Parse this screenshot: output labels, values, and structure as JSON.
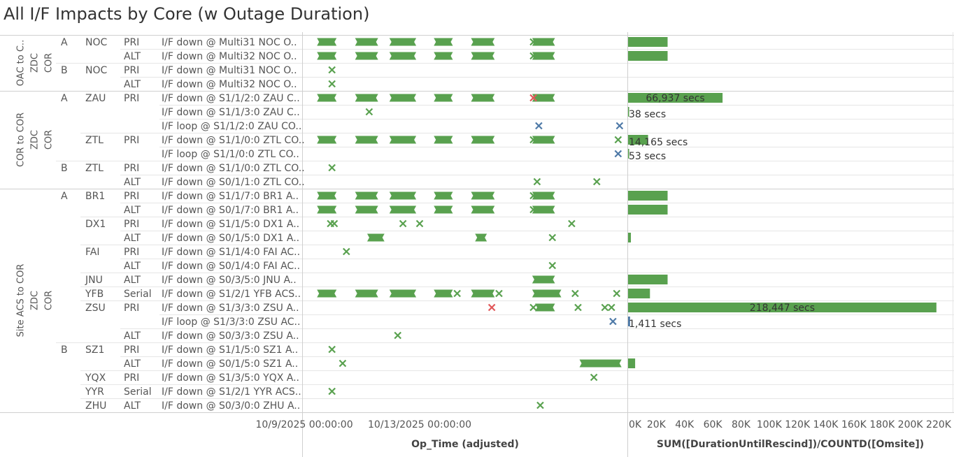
{
  "title": "All I/F Impacts by Core (w Outage Duration)",
  "colors": {
    "green": "#59a14f",
    "red": "#e15759",
    "blue": "#4e79a7",
    "grid": "#e6e6e6",
    "text": "#555555"
  },
  "groups": [
    {
      "label": [
        "OAC to C..",
        "ZDC",
        "COR"
      ],
      "start": 0,
      "end": 4
    },
    {
      "label": [
        "COR to COR",
        "ZDC",
        "COR"
      ],
      "start": 4,
      "end": 11
    },
    {
      "label": [
        "Site ACS to COR",
        "ZDC",
        "COR"
      ],
      "start": 11,
      "end": 27
    }
  ],
  "rows": [
    {
      "side": "A",
      "site": "NOC",
      "role": "PRI",
      "iface": "I/F down @ Multi31 NOC O.."
    },
    {
      "side": "",
      "site": "",
      "role": "ALT",
      "iface": "I/F down @ Multi32 NOC O.."
    },
    {
      "side": "B",
      "site": "NOC",
      "role": "PRI",
      "iface": "I/F down @ Multi31 NOC O.."
    },
    {
      "side": "",
      "site": "",
      "role": "ALT",
      "iface": "I/F down @ Multi32 NOC O.."
    },
    {
      "side": "A",
      "site": "ZAU",
      "role": "PRI",
      "iface": "I/F down @ S1/1/2:0 ZAU C.."
    },
    {
      "side": "",
      "site": "",
      "role": "",
      "iface": "I/F down @ S1/1/3:0 ZAU C.."
    },
    {
      "side": "",
      "site": "",
      "role": "",
      "iface": "I/F loop @ S1/1/2:0 ZAU CO.."
    },
    {
      "side": "",
      "site": "ZTL",
      "role": "PRI",
      "iface": "I/F down @ S1/1/0:0 ZTL CO.."
    },
    {
      "side": "",
      "site": "",
      "role": "",
      "iface": "I/F loop @ S1/1/0:0 ZTL CO.."
    },
    {
      "side": "B",
      "site": "ZTL",
      "role": "PRI",
      "iface": "I/F down @ S1/1/0:0 ZTL CO.."
    },
    {
      "side": "",
      "site": "",
      "role": "ALT",
      "iface": "I/F down @ S0/1/1:0 ZTL CO.."
    },
    {
      "side": "A",
      "site": "BR1",
      "role": "PRI",
      "iface": "I/F down @ S1/1/7:0 BR1 A.."
    },
    {
      "side": "",
      "site": "",
      "role": "ALT",
      "iface": "I/F down @ S0/1/7:0 BR1 A.."
    },
    {
      "side": "",
      "site": "DX1",
      "role": "PRI",
      "iface": "I/F down @ S1/1/5:0 DX1 A.."
    },
    {
      "side": "",
      "site": "",
      "role": "ALT",
      "iface": "I/F down @ S0/1/5:0 DX1 A.."
    },
    {
      "side": "",
      "site": "FAI",
      "role": "PRI",
      "iface": "I/F down @ S1/1/4:0 FAI AC.."
    },
    {
      "side": "",
      "site": "",
      "role": "ALT",
      "iface": "I/F down @ S0/1/4:0 FAI AC.."
    },
    {
      "side": "",
      "site": "JNU",
      "role": "ALT",
      "iface": "I/F down @ S0/3/5:0 JNU A.."
    },
    {
      "side": "",
      "site": "YFB",
      "role": "Serial",
      "iface": "I/F down @ S1/2/1 YFB ACS.."
    },
    {
      "side": "",
      "site": "ZSU",
      "role": "PRI",
      "iface": "I/F down @ S1/3/3:0 ZSU A.."
    },
    {
      "side": "",
      "site": "",
      "role": "",
      "iface": "I/F loop @ S1/3/3:0 ZSU AC.."
    },
    {
      "side": "",
      "site": "",
      "role": "ALT",
      "iface": "I/F down @ S0/3/3:0 ZSU A.."
    },
    {
      "side": "B",
      "site": "SZ1",
      "role": "PRI",
      "iface": "I/F down @ S1/1/5:0 SZ1 A.."
    },
    {
      "side": "",
      "site": "",
      "role": "ALT",
      "iface": "I/F down @ S0/1/5:0 SZ1 A.."
    },
    {
      "side": "",
      "site": "YQX",
      "role": "PRI",
      "iface": "I/F down @ S1/3/5:0 YQX A.."
    },
    {
      "side": "",
      "site": "YYR",
      "role": "Serial",
      "iface": "I/F down @ S1/2/1 YYR ACS.."
    },
    {
      "side": "",
      "site": "ZHU",
      "role": "ALT",
      "iface": "I/F down @ S0/3/0:0 ZHU A.."
    }
  ],
  "chart_data": [
    {
      "type": "timeline",
      "xlabel": "Op_Time (adjusted)",
      "x_unit": "days since 10/9/2025 00:00:00",
      "xlim": [
        -0.05,
        11.2
      ],
      "ticks": [
        {
          "value": 0,
          "label": "10/9/2025 00:00:00"
        },
        {
          "value": 4,
          "label": "10/13/2025 00:00:00"
        }
      ],
      "marks": [
        {
          "row": 0,
          "kind": "bar",
          "start": 0.44,
          "end": 1.12
        },
        {
          "row": 0,
          "kind": "bar",
          "start": 1.76,
          "end": 2.56
        },
        {
          "row": 0,
          "kind": "bar",
          "start": 2.95,
          "end": 3.88
        },
        {
          "row": 0,
          "kind": "bar",
          "start": 4.49,
          "end": 5.15
        },
        {
          "row": 0,
          "kind": "bar",
          "start": 5.78,
          "end": 6.6
        },
        {
          "row": 0,
          "kind": "bar",
          "start": 7.9,
          "end": 8.69
        },
        {
          "row": 0,
          "kind": "x",
          "pos": 7.94,
          "color": "green"
        },
        {
          "row": 1,
          "kind": "bar",
          "start": 0.44,
          "end": 1.12
        },
        {
          "row": 1,
          "kind": "bar",
          "start": 1.76,
          "end": 2.56
        },
        {
          "row": 1,
          "kind": "bar",
          "start": 2.95,
          "end": 3.88
        },
        {
          "row": 1,
          "kind": "bar",
          "start": 4.49,
          "end": 5.15
        },
        {
          "row": 1,
          "kind": "bar",
          "start": 5.78,
          "end": 6.6
        },
        {
          "row": 1,
          "kind": "bar",
          "start": 7.9,
          "end": 8.69
        },
        {
          "row": 1,
          "kind": "x",
          "pos": 7.94,
          "color": "green"
        },
        {
          "row": 2,
          "kind": "x",
          "pos": 0.96,
          "color": "green"
        },
        {
          "row": 3,
          "kind": "x",
          "pos": 0.96,
          "color": "green"
        },
        {
          "row": 4,
          "kind": "bar",
          "start": 0.44,
          "end": 1.12
        },
        {
          "row": 4,
          "kind": "bar",
          "start": 1.76,
          "end": 2.56
        },
        {
          "row": 4,
          "kind": "bar",
          "start": 2.95,
          "end": 3.88
        },
        {
          "row": 4,
          "kind": "bar",
          "start": 4.49,
          "end": 5.15
        },
        {
          "row": 4,
          "kind": "bar",
          "start": 5.78,
          "end": 6.6
        },
        {
          "row": 4,
          "kind": "bar",
          "start": 7.9,
          "end": 8.69
        },
        {
          "row": 4,
          "kind": "x",
          "pos": 7.94,
          "color": "red"
        },
        {
          "row": 5,
          "kind": "x",
          "pos": 2.25,
          "color": "green"
        },
        {
          "row": 6,
          "kind": "x",
          "pos": 8.13,
          "color": "blue"
        },
        {
          "row": 6,
          "kind": "x",
          "pos": 10.93,
          "color": "blue"
        },
        {
          "row": 7,
          "kind": "bar",
          "start": 0.44,
          "end": 1.12
        },
        {
          "row": 7,
          "kind": "bar",
          "start": 1.76,
          "end": 2.56
        },
        {
          "row": 7,
          "kind": "bar",
          "start": 2.95,
          "end": 3.88
        },
        {
          "row": 7,
          "kind": "bar",
          "start": 4.49,
          "end": 5.15
        },
        {
          "row": 7,
          "kind": "bar",
          "start": 5.78,
          "end": 6.6
        },
        {
          "row": 7,
          "kind": "bar",
          "start": 7.9,
          "end": 8.69
        },
        {
          "row": 7,
          "kind": "x",
          "pos": 7.94,
          "color": "green"
        },
        {
          "row": 7,
          "kind": "x",
          "pos": 10.88,
          "color": "green"
        },
        {
          "row": 8,
          "kind": "x",
          "pos": 10.88,
          "color": "blue"
        },
        {
          "row": 9,
          "kind": "x",
          "pos": 0.96,
          "color": "green"
        },
        {
          "row": 10,
          "kind": "x",
          "pos": 8.07,
          "color": "green"
        },
        {
          "row": 10,
          "kind": "x",
          "pos": 10.14,
          "color": "green"
        },
        {
          "row": 11,
          "kind": "bar",
          "start": 0.44,
          "end": 1.12
        },
        {
          "row": 11,
          "kind": "bar",
          "start": 1.76,
          "end": 2.56
        },
        {
          "row": 11,
          "kind": "bar",
          "start": 2.95,
          "end": 3.88
        },
        {
          "row": 11,
          "kind": "bar",
          "start": 4.49,
          "end": 5.15
        },
        {
          "row": 11,
          "kind": "bar",
          "start": 5.78,
          "end": 6.6
        },
        {
          "row": 11,
          "kind": "bar",
          "start": 7.9,
          "end": 8.69
        },
        {
          "row": 11,
          "kind": "x",
          "pos": 7.94,
          "color": "green"
        },
        {
          "row": 12,
          "kind": "bar",
          "start": 0.44,
          "end": 1.12
        },
        {
          "row": 12,
          "kind": "bar",
          "start": 1.76,
          "end": 2.56
        },
        {
          "row": 12,
          "kind": "bar",
          "start": 2.95,
          "end": 3.88
        },
        {
          "row": 12,
          "kind": "bar",
          "start": 4.49,
          "end": 5.15
        },
        {
          "row": 12,
          "kind": "bar",
          "start": 5.78,
          "end": 6.6
        },
        {
          "row": 12,
          "kind": "bar",
          "start": 7.9,
          "end": 8.69
        },
        {
          "row": 12,
          "kind": "x",
          "pos": 7.94,
          "color": "green"
        },
        {
          "row": 13,
          "kind": "x",
          "pos": 0.91,
          "color": "green"
        },
        {
          "row": 13,
          "kind": "x",
          "pos": 1.04,
          "color": "green"
        },
        {
          "row": 13,
          "kind": "x",
          "pos": 3.42,
          "color": "green"
        },
        {
          "row": 13,
          "kind": "x",
          "pos": 4.0,
          "color": "green"
        },
        {
          "row": 13,
          "kind": "x",
          "pos": 9.27,
          "color": "green"
        },
        {
          "row": 14,
          "kind": "bar",
          "start": 2.18,
          "end": 2.78
        },
        {
          "row": 14,
          "kind": "bar",
          "start": 5.92,
          "end": 6.33
        },
        {
          "row": 14,
          "kind": "x",
          "pos": 8.6,
          "color": "green"
        },
        {
          "row": 15,
          "kind": "x",
          "pos": 1.46,
          "color": "green"
        },
        {
          "row": 16,
          "kind": "x",
          "pos": 8.6,
          "color": "green"
        },
        {
          "row": 17,
          "kind": "bar",
          "start": 7.9,
          "end": 8.69
        },
        {
          "row": 18,
          "kind": "bar",
          "start": 0.44,
          "end": 1.12
        },
        {
          "row": 18,
          "kind": "bar",
          "start": 1.76,
          "end": 2.56
        },
        {
          "row": 18,
          "kind": "bar",
          "start": 2.95,
          "end": 3.88
        },
        {
          "row": 18,
          "kind": "bar",
          "start": 4.49,
          "end": 5.15
        },
        {
          "row": 18,
          "kind": "x",
          "pos": 5.3,
          "color": "green"
        },
        {
          "row": 18,
          "kind": "bar",
          "start": 5.78,
          "end": 6.6
        },
        {
          "row": 18,
          "kind": "x",
          "pos": 6.75,
          "color": "green"
        },
        {
          "row": 18,
          "kind": "bar",
          "start": 7.9,
          "end": 8.91
        },
        {
          "row": 18,
          "kind": "x",
          "pos": 9.39,
          "color": "green"
        },
        {
          "row": 18,
          "kind": "x",
          "pos": 10.83,
          "color": "green"
        },
        {
          "row": 19,
          "kind": "x",
          "pos": 6.5,
          "color": "red"
        },
        {
          "row": 19,
          "kind": "x",
          "pos": 7.94,
          "color": "green"
        },
        {
          "row": 19,
          "kind": "bar",
          "start": 8.0,
          "end": 8.69
        },
        {
          "row": 19,
          "kind": "x",
          "pos": 9.49,
          "color": "green"
        },
        {
          "row": 19,
          "kind": "x",
          "pos": 10.42,
          "color": "green"
        },
        {
          "row": 19,
          "kind": "x",
          "pos": 10.65,
          "color": "green"
        },
        {
          "row": 20,
          "kind": "x",
          "pos": 10.7,
          "color": "blue"
        },
        {
          "row": 21,
          "kind": "x",
          "pos": 3.24,
          "color": "green"
        },
        {
          "row": 22,
          "kind": "x",
          "pos": 0.96,
          "color": "green"
        },
        {
          "row": 23,
          "kind": "x",
          "pos": 1.33,
          "color": "green"
        },
        {
          "row": 23,
          "kind": "bar",
          "start": 9.54,
          "end": 11.0
        },
        {
          "row": 24,
          "kind": "x",
          "pos": 10.04,
          "color": "green"
        },
        {
          "row": 25,
          "kind": "x",
          "pos": 0.96,
          "color": "green"
        },
        {
          "row": 26,
          "kind": "x",
          "pos": 8.18,
          "color": "green"
        }
      ]
    },
    {
      "type": "bar",
      "orientation": "horizontal",
      "xlabel": "SUM([DurationUntilRescind])/COUNTD([Omsite])",
      "xlim": [
        0,
        220000
      ],
      "ticks": [
        {
          "value": 0,
          "label": "0K"
        },
        {
          "value": 20000,
          "label": "20K"
        },
        {
          "value": 40000,
          "label": "40K"
        },
        {
          "value": 60000,
          "label": "60K"
        },
        {
          "value": 80000,
          "label": "80K"
        },
        {
          "value": 100000,
          "label": "100K"
        },
        {
          "value": 120000,
          "label": "120K"
        },
        {
          "value": 140000,
          "label": "140K"
        },
        {
          "value": 160000,
          "label": "160K"
        },
        {
          "value": 180000,
          "label": "180K"
        },
        {
          "value": 200000,
          "label": "200K"
        },
        {
          "value": 220000,
          "label": "220K"
        }
      ],
      "bars": [
        {
          "row": 0,
          "value": 28000,
          "label": ""
        },
        {
          "row": 1,
          "value": 28000,
          "label": ""
        },
        {
          "row": 4,
          "value": 66937,
          "label": "66,937 secs"
        },
        {
          "row": 5,
          "value": 38,
          "label": "38 secs"
        },
        {
          "row": 7,
          "value": 14165,
          "label": "14,165 secs"
        },
        {
          "row": 8,
          "value": 53,
          "label": "53 secs"
        },
        {
          "row": 11,
          "value": 28000,
          "label": ""
        },
        {
          "row": 12,
          "value": 28000,
          "label": ""
        },
        {
          "row": 14,
          "value": 2000,
          "label": ""
        },
        {
          "row": 17,
          "value": 28000,
          "label": ""
        },
        {
          "row": 18,
          "value": 15500,
          "label": ""
        },
        {
          "row": 19,
          "value": 218447,
          "label": "218,447 secs"
        },
        {
          "row": 20,
          "value": 1411,
          "label": "1,411 secs",
          "color": "blue"
        },
        {
          "row": 23,
          "value": 5000,
          "label": ""
        }
      ]
    }
  ]
}
